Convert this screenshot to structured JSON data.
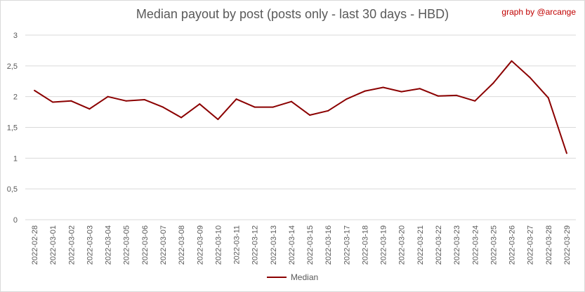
{
  "title": "Median payout by post (posts only - last 30 days - HBD)",
  "credit": "graph by @arcange",
  "colors": {
    "line": "#8b0000",
    "credit": "#c00000",
    "grid": "#d9d9d9",
    "text": "#595959"
  },
  "chart_data": {
    "type": "line",
    "title": "Median payout by post (posts only - last 30 days - HBD)",
    "xlabel": "",
    "ylabel": "",
    "ylim": [
      0,
      3
    ],
    "yticks": [
      "0",
      "0,5",
      "1",
      "1,5",
      "2",
      "2,5",
      "3"
    ],
    "ytick_values": [
      0,
      0.5,
      1,
      1.5,
      2,
      2.5,
      3
    ],
    "grid": true,
    "legend_position": "bottom",
    "categories": [
      "2022-02-28",
      "2022-03-01",
      "2022-03-02",
      "2022-03-03",
      "2022-03-04",
      "2022-03-05",
      "2022-03-06",
      "2022-03-07",
      "2022-03-08",
      "2022-03-09",
      "2022-03-10",
      "2022-03-11",
      "2022-03-12",
      "2022-03-13",
      "2022-03-14",
      "2022-03-15",
      "2022-03-16",
      "2022-03-17",
      "2022-03-18",
      "2022-03-19",
      "2022-03-20",
      "2022-03-21",
      "2022-03-22",
      "2022-03-23",
      "2022-03-24",
      "2022-03-25",
      "2022-03-26",
      "2022-03-27",
      "2022-03-28",
      "2022-03-29"
    ],
    "series": [
      {
        "name": "Median",
        "values": [
          2.1,
          1.91,
          1.93,
          1.8,
          2.0,
          1.93,
          1.95,
          1.83,
          1.66,
          1.88,
          1.63,
          1.96,
          1.83,
          1.83,
          1.92,
          1.7,
          1.77,
          1.96,
          2.09,
          2.15,
          2.08,
          2.13,
          2.01,
          2.02,
          1.93,
          2.22,
          2.58,
          2.31,
          1.98,
          1.08
        ]
      }
    ]
  }
}
